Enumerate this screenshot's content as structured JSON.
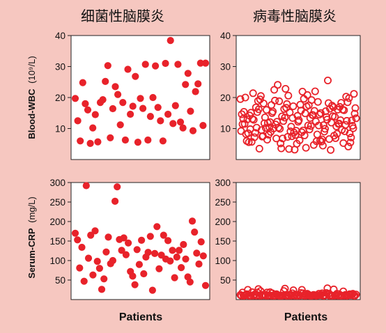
{
  "colors": {
    "background": "#f6c7c0",
    "panel": "#ffffff",
    "marker": "#e8222a",
    "text": "#111111"
  },
  "columns": [
    "细菌性脑膜炎",
    "病毒性脑膜炎"
  ],
  "rows": [
    {
      "ylabel_main": "Blood-WBC",
      "ylabel_unit": "(10⁹/L)",
      "ylim": [
        0,
        40
      ],
      "ticks": [
        10,
        20,
        30,
        40
      ]
    },
    {
      "ylabel_main": "Serum-CRP",
      "ylabel_unit": "(mg/L)",
      "ylim": [
        0,
        300
      ],
      "ticks": [
        50,
        100,
        150,
        200,
        250,
        300
      ]
    }
  ],
  "xlabel": "Patients",
  "chart_data": [
    {
      "type": "scatter",
      "marker": "filled",
      "title": "细菌性脑膜炎",
      "xlabel": "Patients",
      "ylabel": "Blood-WBC (10⁹/L)",
      "ylim": [
        0,
        40
      ],
      "grid": false,
      "y": [
        19.7,
        12.5,
        6,
        24.8,
        18,
        16,
        5.2,
        10.2,
        14.5,
        5.7,
        18.4,
        19.3,
        25.2,
        30.3,
        7,
        16.4,
        23.5,
        21,
        11.2,
        18.4,
        6.3,
        29.1,
        14.6,
        17.2,
        26.8,
        5.6,
        19.7,
        16.5,
        30.7,
        6.3,
        13.9,
        20,
        30.2,
        16.8,
        12.5,
        6,
        31,
        14.6,
        38.4,
        11.6,
        17.4,
        30.7,
        12.1,
        10.2,
        24.2,
        27.8,
        15.6,
        9.3,
        21.9,
        24.4,
        31.1,
        11,
        31.1
      ]
    },
    {
      "type": "scatter",
      "marker": "open",
      "title": "病毒性脑膜炎",
      "xlabel": "Patients",
      "ylabel": "Blood-WBC (10⁹/L)",
      "ylim": [
        0,
        40
      ],
      "grid": false,
      "y": [
        19.5,
        16,
        13.4,
        11,
        9.1,
        7.2,
        5.2,
        17.1,
        14,
        11.4,
        8,
        3.2,
        15,
        12.5,
        10.3,
        6.8,
        17.5,
        13.8,
        11.5,
        8.9,
        5.1,
        4.5,
        19.8,
        16.2,
        13.5,
        10.8,
        8.3,
        6,
        15.5,
        12.7,
        9.9,
        7.1,
        20.5,
        17.9,
        14.3,
        11.6,
        5.6,
        19,
        15.8,
        12.9,
        10.1,
        7.6,
        3.4,
        22,
        18.3,
        15.1,
        12.2,
        9.4,
        6.6,
        16.6,
        13.6,
        10.6,
        8.1,
        5.3,
        21.4,
        18.8,
        14.9,
        11.9,
        9.2,
        6.4,
        17.2,
        14.5,
        11.2,
        8.6,
        3.6,
        20.8,
        16.9,
        13.2,
        10.4,
        7.9,
        5.8,
        18.5,
        15.3,
        12.4,
        9.7,
        6.9,
        20,
        17.6,
        14.1,
        11.1,
        8.4,
        3.5,
        22.8,
        19.2,
        16.1,
        13,
        10,
        6.2,
        15.6,
        12.6,
        9.5,
        7.3,
        4.7,
        17,
        14.2,
        11.3,
        8.8,
        25.5,
        21.2,
        18.1,
        15.2,
        12.3,
        9.6,
        5.7,
        24.1,
        19.6,
        16.4,
        13.3,
        10.2,
        7.5,
        18.6,
        15.9,
        12.8,
        9.9,
        3.8,
        17.4,
        14.6,
        11.8,
        8.7,
        6.1,
        20.3,
        16.8,
        13.9,
        11,
        7.7,
        15.4,
        12.1,
        9.3,
        6.5,
        4.2,
        18.9,
        16.3,
        13.4,
        10.7,
        8.2,
        15,
        12.2,
        9,
        5.5,
        19.4,
        16.7,
        14.4,
        11.5,
        8.5,
        22.5,
        17.7,
        13.7,
        10.9,
        7.4,
        20.6,
        15.7,
        12.7,
        9.8,
        6.8,
        21.9,
        18.2,
        14.8,
        11.7,
        9.1,
        5.9,
        16.1,
        13.1,
        10.3,
        7.8,
        3.1
      ]
    },
    {
      "type": "scatter",
      "marker": "filled",
      "title": "细菌性脑膜炎",
      "xlabel": "Patients",
      "ylabel": "Serum-CRP (mg/L)",
      "ylim": [
        0,
        300
      ],
      "grid": false,
      "y": [
        170,
        153,
        81,
        134,
        47,
        292,
        106,
        165,
        63,
        176,
        98,
        80,
        26,
        53,
        122,
        160,
        92,
        100,
        252,
        289,
        154,
        126,
        158,
        115,
        145,
        72,
        60,
        38,
        128,
        90,
        152,
        66,
        109,
        121,
        162,
        24,
        118,
        187,
        79,
        114,
        165,
        104,
        151,
        99,
        126,
        56,
        109,
        126,
        82,
        141,
        104,
        58,
        45,
        201,
        173,
        119,
        91,
        148,
        112,
        36
      ]
    },
    {
      "type": "scatter",
      "marker": "open",
      "title": "病毒性脑膜炎",
      "xlabel": "Patients",
      "ylabel": "Serum-CRP (mg/L)",
      "ylim": [
        0,
        300
      ],
      "grid": false,
      "y": [
        12,
        7,
        15,
        9,
        4,
        11,
        18,
        6,
        13,
        3,
        10,
        16,
        8,
        22,
        5,
        12,
        28,
        9,
        14,
        6,
        11,
        25,
        4,
        17,
        8,
        12,
        29,
        6,
        10,
        15,
        5,
        13,
        9,
        19,
        7,
        11,
        4,
        16,
        8,
        12,
        24,
        6,
        14,
        10,
        26,
        5,
        13,
        9,
        18,
        7,
        11,
        27,
        4,
        15,
        8,
        12,
        6,
        22,
        10,
        14,
        5,
        17,
        9,
        12,
        25,
        7,
        11,
        16,
        6,
        13,
        8,
        21,
        4,
        14,
        10,
        18,
        7,
        12,
        6,
        15,
        9,
        11,
        13,
        8,
        19,
        5,
        12,
        10,
        7,
        14,
        16,
        6,
        11,
        9,
        4,
        13,
        8,
        12,
        15,
        7,
        11,
        9,
        14,
        6,
        10,
        12,
        8,
        13,
        5,
        11
      ]
    }
  ]
}
